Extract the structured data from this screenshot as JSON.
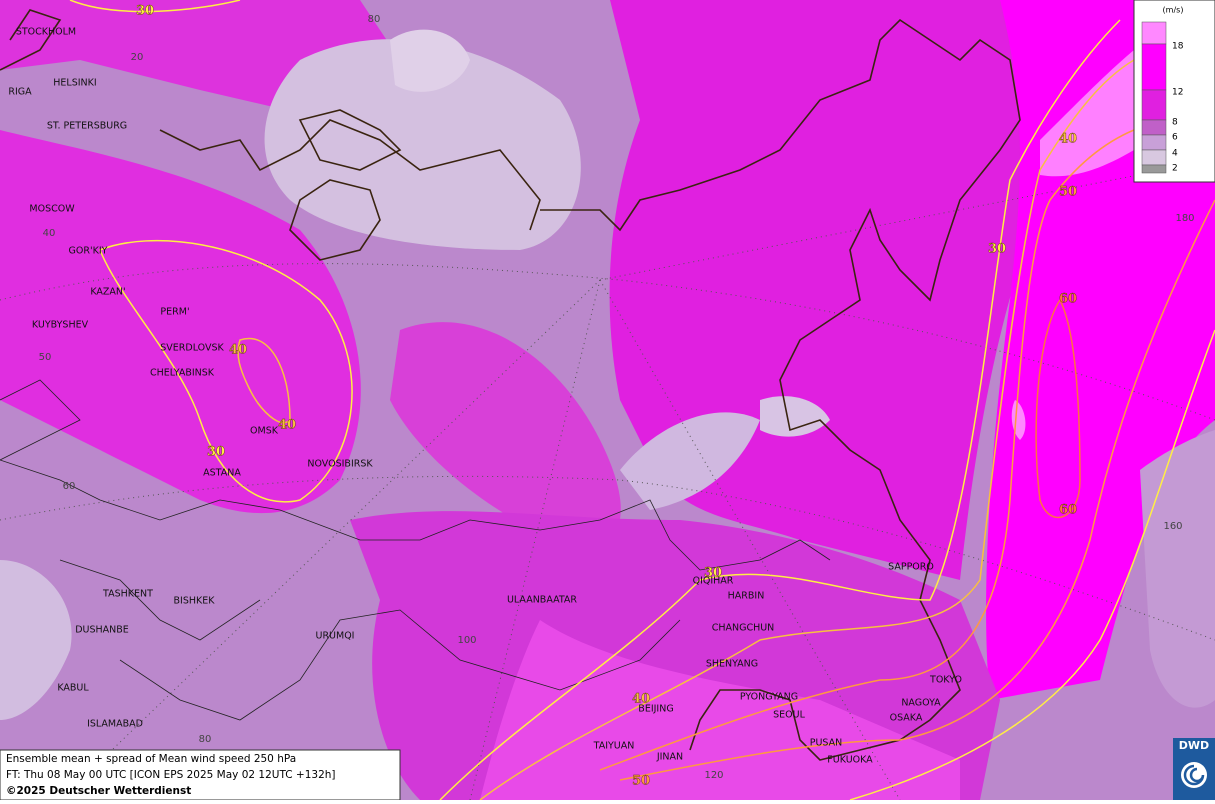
{
  "map": {
    "cities": [
      "STOCKHOLM",
      "HELSINKI",
      "RIGA",
      "ST. PETERSBURG",
      "MOSCOW",
      "GOR'KIY",
      "KAZAN'",
      "PERM'",
      "KUYBYSHEV",
      "SVERDLOVSK",
      "CHELYABINSK",
      "OMSK",
      "NOVOSIBIRSK",
      "ASTANA",
      "TASHKENT",
      "BISHKEK",
      "DUSHANBE",
      "URUMQI",
      "KABUL",
      "ISLAMABAD",
      "ULAANBAATAR",
      "QIQIHAR",
      "HARBIN",
      "CHANGCHUN",
      "SHENYANG",
      "PYONGYANG",
      "SEOUL",
      "BEIJING",
      "TAIYUAN",
      "JINAN",
      "PUSAN",
      "FUKUOKA",
      "OSAKA",
      "NAGOYA",
      "TOKYO",
      "SAPPORO"
    ],
    "grid_labels": [
      80,
      20,
      40,
      50,
      60,
      100,
      80,
      120,
      160,
      180
    ],
    "contour_labels": [
      30,
      40,
      40,
      30,
      30,
      40,
      50,
      30,
      40,
      50,
      60,
      60
    ]
  },
  "legend": {
    "unit": "(m/s)",
    "ticks": [
      18,
      12,
      8,
      6,
      4,
      2
    ]
  },
  "info": {
    "lines": [
      "Ensemble mean + spread of Mean wind speed 250 hPa",
      "FT: Thu 08 May 00 UTC [ICON EPS 2025 May 02 12UTC +132h]",
      "©2025 Deutscher Wetterdienst"
    ]
  },
  "logo": {
    "text": "DWD"
  }
}
